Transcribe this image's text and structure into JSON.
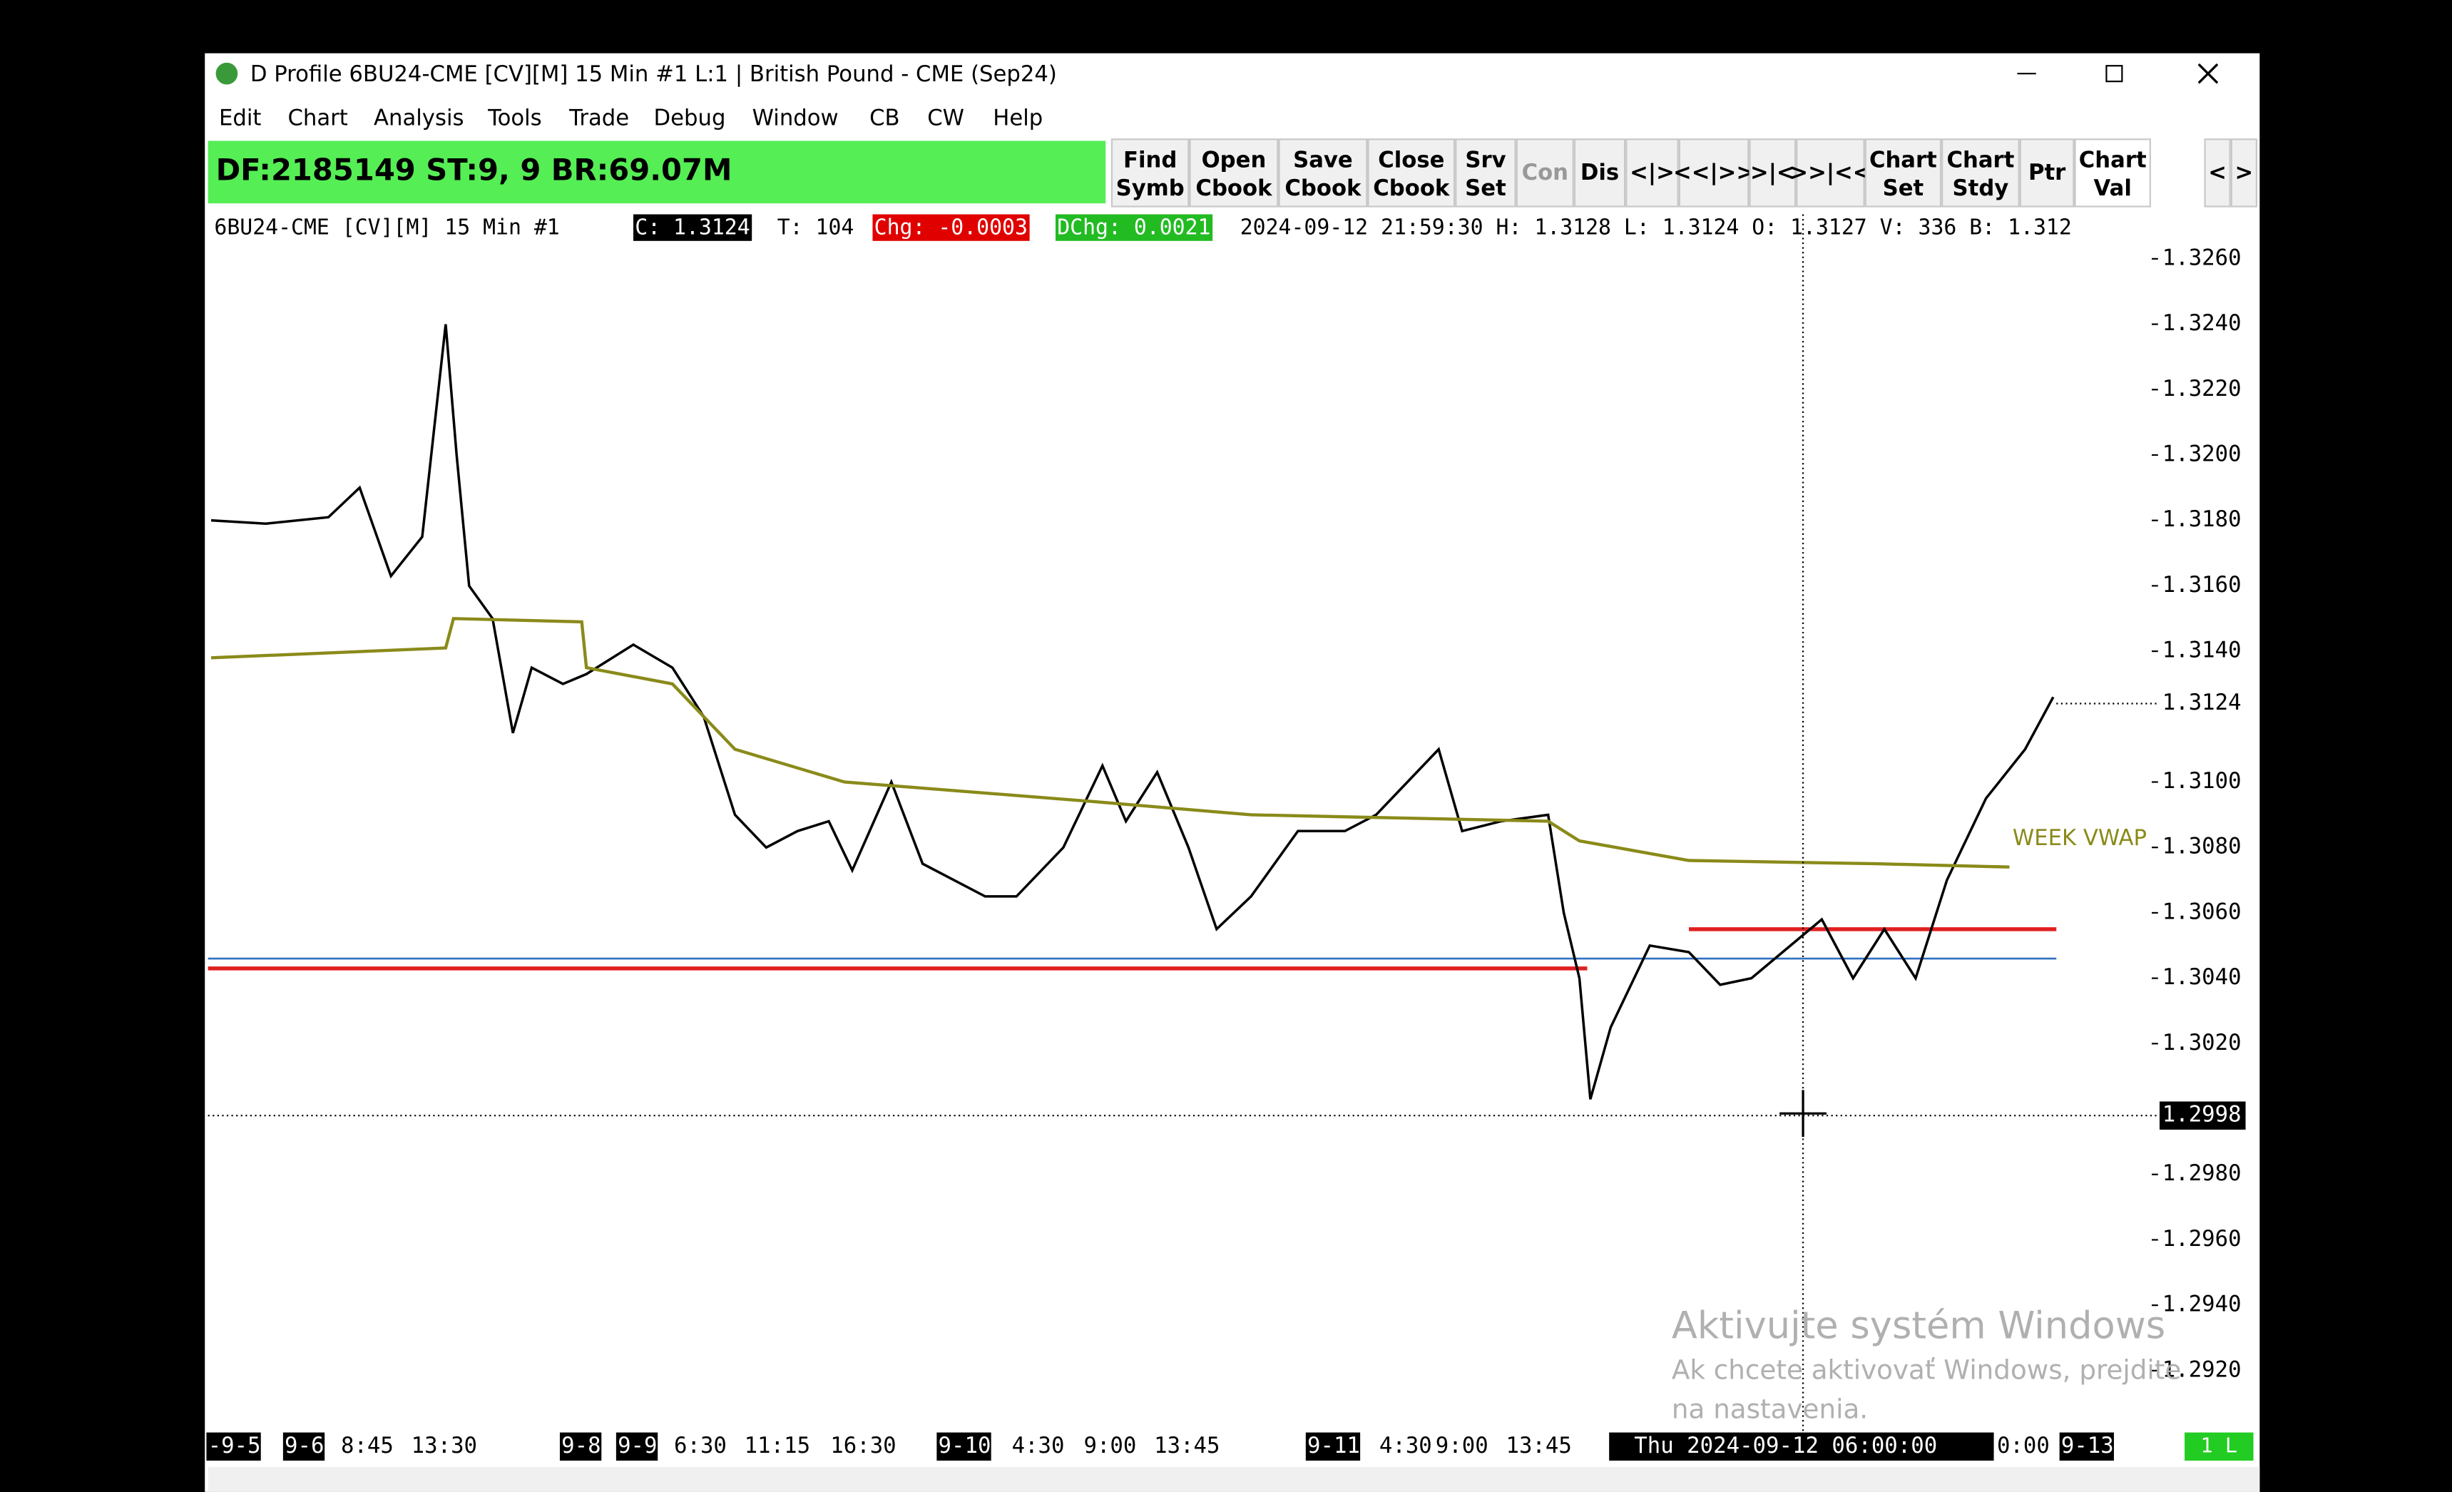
{
  "window_title": "D Profile 6BU24-CME [CV][M]  15 Min  #1 L:1 | British Pound - CME (Sep24)",
  "menu": [
    "Edit",
    "Chart",
    "Analysis",
    "Tools",
    "Trade",
    "Debug",
    "Window",
    "CB",
    "CW",
    "Help"
  ],
  "status_box": "DF:2185149  ST:9, 9  BR:69.07M",
  "buttons": [
    [
      "Find",
      "Symb"
    ],
    [
      "Open",
      "Cbook"
    ],
    [
      "Save",
      "Cbook"
    ],
    [
      "Close",
      "Cbook"
    ],
    [
      "Srv",
      "Set"
    ],
    [
      "Con"
    ],
    [
      "Dis"
    ],
    [
      "<|>"
    ],
    [
      "<<|>>"
    ],
    [
      ">|<"
    ],
    [
      ">>|<<"
    ],
    [
      "Chart",
      "Set"
    ],
    [
      "Chart",
      "Stdy"
    ],
    [
      "Ptr"
    ],
    [
      "Chart",
      "Val"
    ],
    [
      "<"
    ],
    [
      ">"
    ]
  ],
  "info_bar": [
    "6BU24-CME [CV][M]  15 Min  #1",
    "C: 1.3124",
    "T: 104",
    "Chg: -0.0003",
    "DChg: 0.0021",
    "2024-09-12 21:59:30 H: 1.3128 L: 1.3124 O: 1.3127 V: 336 B: 1.312"
  ],
  "time_labels": [
    "-9-5",
    "9-6",
    "8:45",
    "13:30",
    "9-8",
    "9-9",
    "6:30",
    "11:15",
    "16:30",
    "9-10",
    "4:30",
    "9:00",
    "13:45",
    "9-11",
    "4:30",
    "9:00",
    "13:45",
    "Thu 2024-09-12  06:00:00",
    "0:00",
    "9-13"
  ],
  "watermark": [
    "Aktivujte systém Windows",
    "Ak chcete aktivovať Windows, prejdite",
    "na nastavenia."
  ],
  "corner_badge": "1 L",
  "chart_data": {
    "type": "line",
    "xlim": [
      0,
      1242
    ],
    "ylim": [
      1.2903,
      1.3265
    ],
    "yticks": [
      {
        "value": 1.326,
        "label": "1.3260"
      },
      {
        "value": 1.324,
        "label": "1.3240"
      },
      {
        "value": 1.322,
        "label": "1.3220"
      },
      {
        "value": 1.32,
        "label": "1.3200"
      },
      {
        "value": 1.318,
        "label": "1.3180"
      },
      {
        "value": 1.316,
        "label": "1.3160"
      },
      {
        "value": 1.314,
        "label": "1.3140"
      },
      {
        "value": 1.31,
        "label": "1.3100"
      },
      {
        "value": 1.308,
        "label": "1.3080"
      },
      {
        "value": 1.306,
        "label": "1.3060"
      },
      {
        "value": 1.304,
        "label": "1.3040"
      },
      {
        "value": 1.302,
        "label": "1.3020"
      },
      {
        "value": 1.298,
        "label": "1.2980"
      },
      {
        "value": 1.296,
        "label": "1.2960"
      },
      {
        "value": 1.294,
        "label": "1.2940"
      },
      {
        "value": 1.292,
        "label": "1.2920"
      }
    ],
    "price_markers": [
      {
        "value": 1.3124,
        "label": "1.3124"
      },
      {
        "value": 1.2998,
        "label": "1.2998"
      }
    ],
    "series": [
      {
        "name": "price",
        "color": "#000000",
        "x": [
          2,
          37,
          77,
          97,
          117,
          137,
          152,
          159,
          167,
          182,
          195,
          207,
          227,
          242,
          272,
          297,
          317,
          337,
          357,
          377,
          397,
          412,
          437,
          457,
          497,
          517,
          547,
          572,
          587,
          607,
          627,
          645,
          667,
          697,
          727,
          747,
          787,
          802,
          827,
          857,
          867,
          877,
          884,
          897,
          922,
          947,
          967,
          987,
          1012,
          1032,
          1052,
          1072,
          1092,
          1112,
          1137,
          1162,
          1180
        ],
        "values": [
          1.318,
          1.3179,
          1.3181,
          1.319,
          1.3163,
          1.3175,
          1.324,
          1.32,
          1.316,
          1.315,
          1.3115,
          1.3135,
          1.313,
          1.3133,
          1.3142,
          1.3135,
          1.312,
          1.309,
          1.308,
          1.3085,
          1.3088,
          1.3073,
          1.31,
          1.3075,
          1.3065,
          1.3065,
          1.308,
          1.3105,
          1.3088,
          1.3103,
          1.308,
          1.3055,
          1.3065,
          1.3085,
          1.3085,
          1.309,
          1.311,
          1.3085,
          1.3088,
          1.309,
          1.306,
          1.304,
          1.3003,
          1.3025,
          1.305,
          1.3048,
          1.3038,
          1.304,
          1.305,
          1.3058,
          1.304,
          1.3055,
          1.304,
          1.307,
          1.3095,
          1.311,
          1.3126
        ]
      },
      {
        "name": "WEEK VWAP",
        "color": "#8a8a1a",
        "x": [
          2,
          152,
          157,
          239,
          242,
          297,
          337,
          407,
          567,
          667,
          857,
          877,
          947,
          1067,
          1152
        ],
        "values": [
          1.3138,
          1.3141,
          1.315,
          1.3149,
          1.3135,
          1.313,
          1.311,
          1.31,
          1.3094,
          1.309,
          1.3088,
          1.3082,
          1.3076,
          1.3075,
          1.3074
        ]
      }
    ],
    "levels": [
      {
        "value": 1.3043,
        "color": "#e02020"
      },
      {
        "value": 1.3046,
        "color": "#3070c0"
      },
      {
        "value": 1.3055,
        "color": "#e02020"
      }
    ]
  }
}
